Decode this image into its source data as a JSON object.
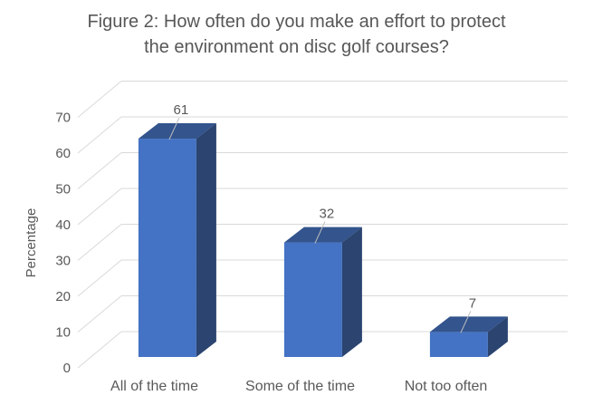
{
  "title_lines": [
    "Figure 2: How often do you make an effort to protect",
    "the environment on disc golf courses?"
  ],
  "chart_data": {
    "type": "bar",
    "subtype": "3d-column",
    "title": "Figure 2: How often do you make an effort to protect the environment on disc golf courses?",
    "categories": [
      "All of the time",
      "Some of the time",
      "Not too often"
    ],
    "values": [
      61,
      32,
      7
    ],
    "data_labels": [
      "61",
      "32",
      "7"
    ],
    "xlabel": "",
    "ylabel": "Percentage",
    "ylim": [
      0,
      70
    ],
    "yticks": [
      0,
      10,
      20,
      30,
      40,
      50,
      60,
      70
    ],
    "grid": true,
    "legend": false,
    "colors": {
      "bar_front": "#4472C4",
      "bar_top": "#33548D",
      "bar_side": "#2B4470",
      "gridline": "#D9D9D9",
      "leader_line": "#BFBFBF",
      "text": "#595959"
    }
  }
}
